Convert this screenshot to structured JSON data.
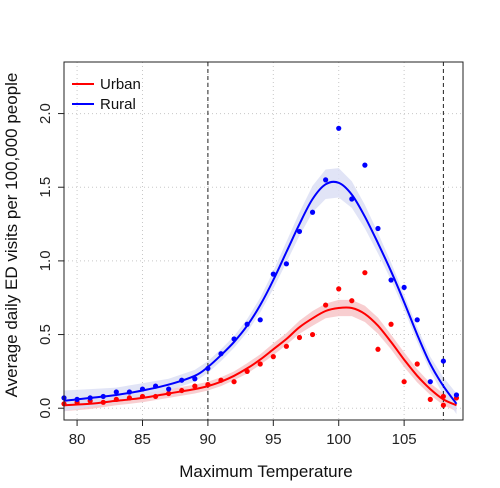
{
  "chart_data": {
    "type": "scatter",
    "xlabel": "Maximum Temperature",
    "ylabel": "Average daily ED visits per 100,000 people",
    "xlim": [
      79,
      109.5
    ],
    "ylim": [
      -0.08,
      2.35
    ],
    "x_ticks": [
      80,
      85,
      90,
      95,
      100,
      105
    ],
    "x_tick_labels": [
      "80",
      "85",
      "90",
      "95",
      "100",
      "105"
    ],
    "y_ticks": [
      0.0,
      0.5,
      1.0,
      1.5,
      2.0
    ],
    "y_tick_labels": [
      "0.0",
      "0.5",
      "1.0",
      "1.5",
      "2.0"
    ],
    "grid": true,
    "legend_position": "top-left",
    "vlines": [
      90,
      108
    ],
    "series": [
      {
        "name": "Urban",
        "color": "#ff0000",
        "band_color": "#f7c5c8",
        "points_x": [
          79,
          80,
          81,
          82,
          83,
          84,
          85,
          86,
          87,
          88,
          89,
          90,
          91,
          92,
          93,
          94,
          95,
          96,
          97,
          98,
          99,
          100,
          101,
          102,
          103,
          104,
          105,
          106,
          107,
          108,
          108,
          109
        ],
        "points_y": [
          0.03,
          0.04,
          0.05,
          0.04,
          0.06,
          0.07,
          0.08,
          0.08,
          0.1,
          0.12,
          0.15,
          0.16,
          0.19,
          0.18,
          0.25,
          0.3,
          0.35,
          0.42,
          0.48,
          0.5,
          0.7,
          0.81,
          0.73,
          0.92,
          0.4,
          0.57,
          0.18,
          0.3,
          0.06,
          0.02,
          0.08,
          0.07
        ],
        "fit_x": [
          79,
          81,
          83,
          85,
          87,
          89,
          90,
          91,
          92,
          93,
          94,
          95,
          96,
          97,
          98,
          99,
          100,
          101,
          102,
          103,
          104,
          105,
          106,
          107,
          108,
          109
        ],
        "fit_y": [
          0.02,
          0.03,
          0.05,
          0.07,
          0.1,
          0.13,
          0.15,
          0.18,
          0.22,
          0.27,
          0.33,
          0.4,
          0.47,
          0.55,
          0.61,
          0.66,
          0.68,
          0.68,
          0.64,
          0.56,
          0.45,
          0.33,
          0.22,
          0.13,
          0.06,
          0.02
        ],
        "band_width": [
          0.04,
          0.035,
          0.03,
          0.03,
          0.03,
          0.03,
          0.03,
          0.03,
          0.03,
          0.035,
          0.035,
          0.04,
          0.04,
          0.045,
          0.05,
          0.05,
          0.055,
          0.055,
          0.055,
          0.055,
          0.05,
          0.05,
          0.045,
          0.04,
          0.04,
          0.04
        ]
      },
      {
        "name": "Rural",
        "color": "#0000ff",
        "band_color": "#dcdff4",
        "points_x": [
          79,
          80,
          81,
          82,
          83,
          84,
          85,
          86,
          87,
          88,
          89,
          90,
          91,
          92,
          93,
          94,
          95,
          96,
          97,
          98,
          99,
          100,
          101,
          102,
          103,
          104,
          105,
          106,
          107,
          108,
          109
        ],
        "points_y": [
          0.07,
          0.06,
          0.07,
          0.08,
          0.11,
          0.11,
          0.13,
          0.15,
          0.13,
          0.19,
          0.2,
          0.27,
          0.37,
          0.47,
          0.57,
          0.6,
          0.91,
          0.98,
          1.2,
          1.33,
          1.55,
          1.9,
          1.42,
          1.65,
          1.22,
          0.87,
          0.82,
          0.6,
          0.18,
          0.32,
          0.09
        ],
        "fit_x": [
          79,
          81,
          83,
          85,
          87,
          89,
          90,
          91,
          92,
          93,
          94,
          95,
          96,
          97,
          98,
          99,
          100,
          101,
          102,
          103,
          104,
          105,
          106,
          107,
          108,
          109
        ],
        "fit_y": [
          0.05,
          0.07,
          0.09,
          0.12,
          0.16,
          0.22,
          0.28,
          0.36,
          0.45,
          0.56,
          0.7,
          0.87,
          1.06,
          1.25,
          1.42,
          1.52,
          1.53,
          1.45,
          1.3,
          1.12,
          0.93,
          0.72,
          0.5,
          0.3,
          0.15,
          0.03
        ],
        "band_width": [
          0.07,
          0.06,
          0.05,
          0.05,
          0.04,
          0.04,
          0.04,
          0.04,
          0.04,
          0.045,
          0.05,
          0.06,
          0.07,
          0.08,
          0.09,
          0.1,
          0.1,
          0.09,
          0.08,
          0.07,
          0.06,
          0.05,
          0.05,
          0.05,
          0.06,
          0.07
        ]
      }
    ]
  }
}
